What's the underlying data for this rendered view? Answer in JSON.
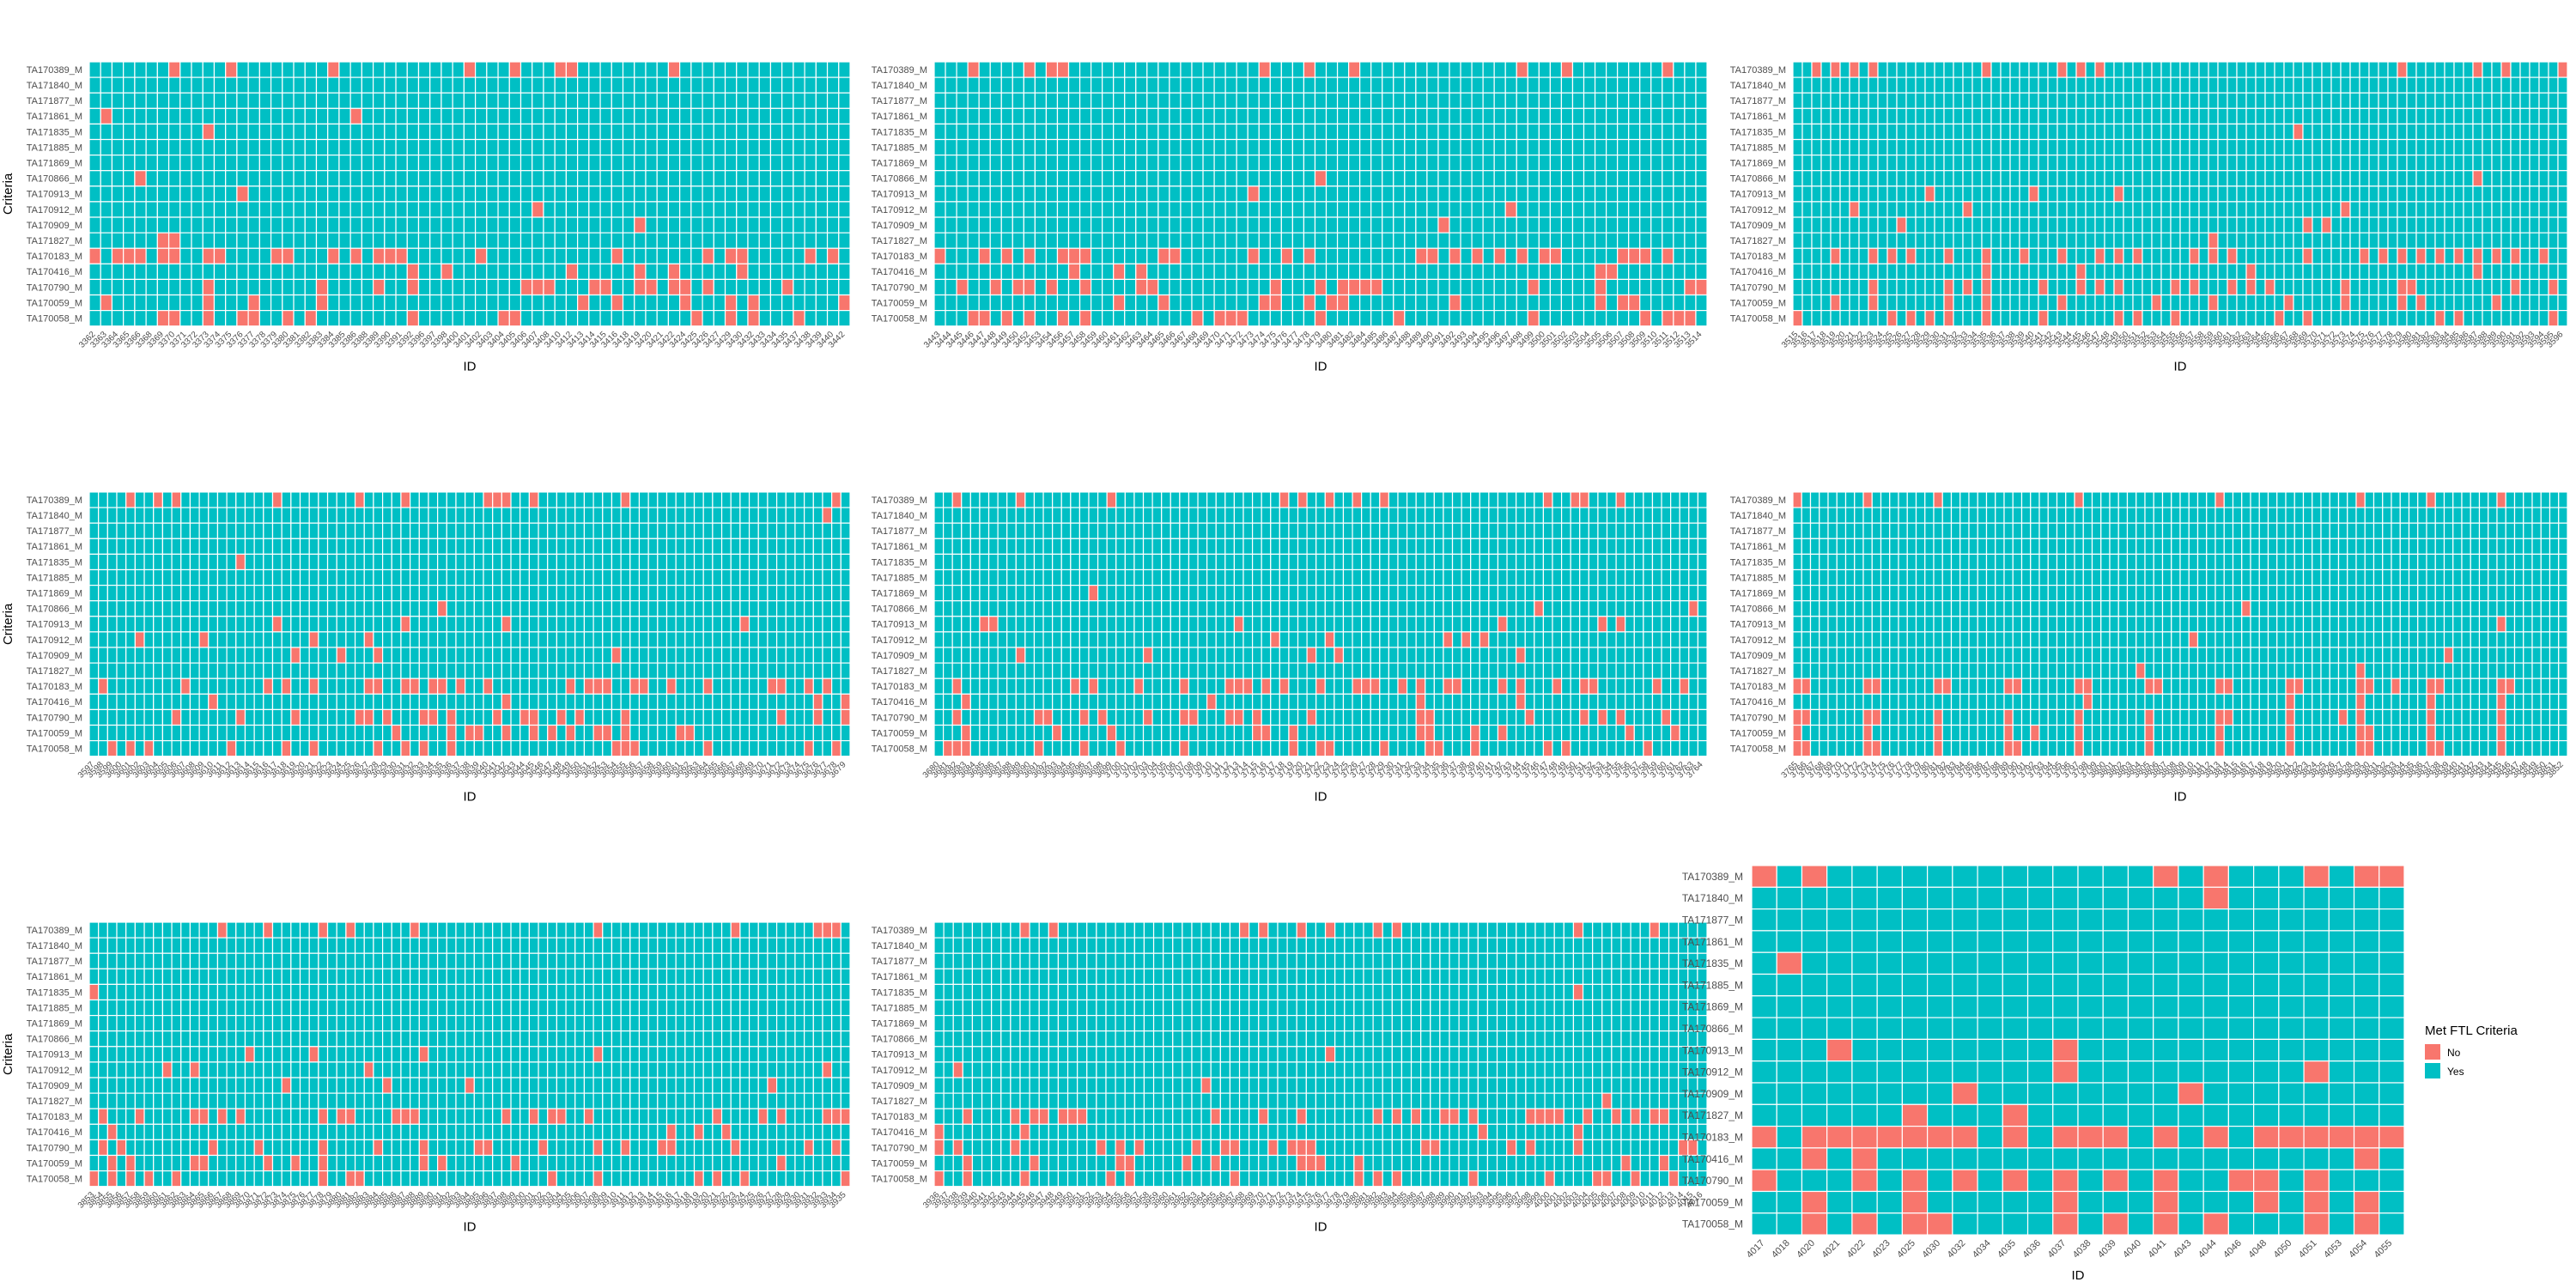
{
  "chart_data": [
    {
      "type": "heatmap",
      "xlabel": "ID",
      "ylabel": "Criteria",
      "categories": [
        "3362",
        "3363",
        "3364",
        "3365",
        "3366",
        "3368",
        "3369",
        "3370",
        "3371",
        "3372",
        "3373",
        "3374",
        "3375",
        "3376",
        "3377",
        "3378",
        "3379",
        "3380",
        "3381",
        "3382",
        "3383",
        "3384",
        "3385",
        "3386",
        "3388",
        "3389",
        "3390",
        "3391",
        "3392",
        "3396",
        "3397",
        "3398",
        "3400",
        "3401",
        "3402",
        "3403",
        "3404",
        "3405",
        "3406",
        "3407",
        "3408",
        "3410",
        "3412",
        "3413",
        "3414",
        "3415",
        "3416",
        "3418",
        "3419",
        "3420",
        "3421",
        "3422",
        "3424",
        "3425",
        "3426",
        "3427",
        "3429",
        "3430",
        "3432",
        "3433",
        "3434",
        "3435",
        "3437",
        "3438",
        "3439",
        "3440",
        "3442"
      ],
      "value_names": [
        "No",
        "Yes"
      ],
      "matrix": [
        "NNNNNNNN",
        "",
        "",
        "NN",
        "N",
        "",
        "",
        "N",
        "N",
        "N",
        "N",
        "NN",
        "NNNNNNNNNNNNNNNNNNNNNN",
        "NNNNNN",
        "NNNNNNNNNNNNNNN",
        "NNNNNNNNNN",
        "NNNNNNNNNNNNNN"
      ]
    },
    {
      "type": "heatmap",
      "xlabel": "ID",
      "ylabel": "",
      "categories": [
        "3443",
        "3444",
        "3445",
        "3446",
        "3447",
        "3448",
        "3449",
        "3450",
        "3452",
        "3453",
        "3454",
        "3456",
        "3457",
        "3458",
        "3459",
        "3460",
        "3461",
        "3462",
        "3463",
        "3464",
        "3465",
        "3466",
        "3467",
        "3468",
        "3469",
        "3470",
        "3471",
        "3472",
        "3473",
        "3474",
        "3475",
        "3476",
        "3477",
        "3478",
        "3479",
        "3480",
        "3481",
        "3482",
        "3484",
        "3485",
        "3486",
        "3487",
        "3488",
        "3489",
        "3490",
        "3491",
        "3492",
        "3493",
        "3494",
        "3495",
        "3496",
        "3497",
        "3498",
        "3499",
        "3500",
        "3501",
        "3502",
        "3503",
        "3504",
        "3505",
        "3506",
        "3507",
        "3508",
        "3509",
        "3510",
        "3511",
        "3512",
        "3513",
        "3514"
      ],
      "value_names": [
        "No",
        "Yes"
      ],
      "matrix": [
        "NNNNNNNNNN",
        "",
        "",
        "",
        "",
        "",
        "",
        "N",
        "N",
        "N",
        "N",
        "",
        "NNNNNNNNNNNNNNNNNNNNNNNN",
        "NNNNN",
        "NNNNNNNNNNNNNNNNNN",
        "NNNNNNNNNNN",
        "NNNNNNNNNNNNNNNNN"
      ]
    },
    {
      "type": "heatmap",
      "xlabel": "ID",
      "ylabel": "",
      "categories": [
        "3515",
        "3516",
        "3517",
        "3518",
        "3519",
        "3520",
        "3521",
        "3522",
        "3523",
        "3524",
        "3525",
        "3526",
        "3527",
        "3528",
        "3529",
        "3530",
        "3531",
        "3532",
        "3533",
        "3534",
        "3535",
        "3536",
        "3537",
        "3538",
        "3539",
        "3540",
        "3541",
        "3542",
        "3543",
        "3544",
        "3545",
        "3546",
        "3547",
        "3548",
        "3549",
        "3550",
        "3551",
        "3552",
        "3553",
        "3554",
        "3555",
        "3556",
        "3557",
        "3558",
        "3559",
        "3560",
        "3561",
        "3562",
        "3563",
        "3564",
        "3565",
        "3566",
        "3567",
        "3568",
        "3569",
        "3570",
        "3571",
        "3572",
        "3573",
        "3574",
        "3575",
        "3576",
        "3577",
        "3578",
        "3579",
        "3580",
        "3581",
        "3582",
        "3583",
        "3584",
        "3585",
        "3586",
        "3587",
        "3588",
        "3589",
        "3590",
        "3591",
        "3592",
        "3593",
        "3594",
        "3595",
        "3596"
      ],
      "value_names": [
        "No",
        "Yes"
      ],
      "matrix": [
        "NNNNNNNNNNNN",
        "",
        "",
        "",
        "N",
        "",
        "",
        "N",
        "NNN",
        "NNN",
        "NNN",
        "N",
        "NNNNNNNNNNNNNNNNNNNNNNNNN",
        "NNNN",
        "NNNNNNNNNNNNNNNNNN",
        "NNNNNNNNNNNN",
        "NNNNNNNNNNNNNNN"
      ]
    },
    {
      "type": "heatmap",
      "xlabel": "ID",
      "ylabel": "Criteria",
      "categories": [
        "3597",
        "3598",
        "3599",
        "3600",
        "3601",
        "3602",
        "3603",
        "3604",
        "3605",
        "3606",
        "3607",
        "3608",
        "3609",
        "3610",
        "3611",
        "3612",
        "3613",
        "3614",
        "3615",
        "3616",
        "3617",
        "3618",
        "3619",
        "3620",
        "3621",
        "3622",
        "3623",
        "3624",
        "3625",
        "3626",
        "3627",
        "3628",
        "3629",
        "3630",
        "3631",
        "3632",
        "3633",
        "3634",
        "3635",
        "3636",
        "3637",
        "3638",
        "3639",
        "3640",
        "3641",
        "3642",
        "3643",
        "3644",
        "3645",
        "3646",
        "3647",
        "3648",
        "3649",
        "3650",
        "3651",
        "3652",
        "3653",
        "3654",
        "3655",
        "3656",
        "3657",
        "3658",
        "3659",
        "3660",
        "3661",
        "3662",
        "3663",
        "3664",
        "3665",
        "3666",
        "3667",
        "3668",
        "3669",
        "3670",
        "3671",
        "3672",
        "3673",
        "3674",
        "3675",
        "3676",
        "3677",
        "3678",
        "3679"
      ],
      "value_names": [
        "No",
        "Yes"
      ],
      "matrix": [
        "NNNNNNNNNNNN",
        "N",
        "",
        "",
        "N",
        "",
        "",
        "N",
        "NNNN",
        "NNNN",
        "NNNN",
        "",
        "NNNNNNNNNNNNNNNNNNNNNNNNN",
        "NNNN",
        "NNNNNNNNNNNNNNNNNN",
        "NNNNNNNNNNNNN",
        "NNNNNNNNNNNNNNNN"
      ]
    },
    {
      "type": "heatmap",
      "xlabel": "ID",
      "ylabel": "",
      "categories": [
        "3680",
        "3681",
        "3682",
        "3683",
        "3684",
        "3685",
        "3686",
        "3687",
        "3688",
        "3689",
        "3690",
        "3691",
        "3692",
        "3693",
        "3694",
        "3695",
        "3696",
        "3697",
        "3698",
        "3699",
        "3700",
        "3701",
        "3702",
        "3703",
        "3704",
        "3705",
        "3706",
        "3707",
        "3708",
        "3709",
        "3710",
        "3711",
        "3712",
        "3713",
        "3714",
        "3715",
        "3716",
        "3717",
        "3718",
        "3719",
        "3720",
        "3721",
        "3722",
        "3723",
        "3724",
        "3725",
        "3726",
        "3727",
        "3728",
        "3729",
        "3730",
        "3731",
        "3732",
        "3733",
        "3734",
        "3735",
        "3736",
        "3737",
        "3738",
        "3739",
        "3740",
        "3741",
        "3742",
        "3743",
        "3744",
        "3745",
        "3746",
        "3747",
        "3748",
        "3749",
        "3750",
        "3751",
        "3752",
        "3753",
        "3754",
        "3755",
        "3756",
        "3757",
        "3758",
        "3759",
        "3760",
        "3761",
        "3762",
        "3763",
        "3764"
      ],
      "value_names": [
        "No",
        "Yes"
      ],
      "matrix": [
        "NNNNNNNNNNNN",
        "",
        "",
        "",
        "",
        "",
        "N",
        "NN",
        "NNNNNN",
        "NNNNN",
        "NNNNN",
        "",
        "NNNNNNNNNNNNNNNNNNNNNNNNN",
        "NNNN",
        "NNNNNNNNNNNNNNNNNNN",
        "NNNNNNNNNNNN",
        "NNNNNNNNNNNNNNNNN"
      ]
    },
    {
      "type": "heatmap",
      "xlabel": "ID",
      "ylabel": "",
      "categories": [
        "3765",
        "3766",
        "3767",
        "3768",
        "3769",
        "3770",
        "3771",
        "3772",
        "3773",
        "3774",
        "3775",
        "3776",
        "3777",
        "3778",
        "3779",
        "3780",
        "3781",
        "3782",
        "3783",
        "3784",
        "3785",
        "3786",
        "3787",
        "3788",
        "3789",
        "3790",
        "3791",
        "3792",
        "3793",
        "3794",
        "3795",
        "3796",
        "3797",
        "3798",
        "3799",
        "3800",
        "3801",
        "3802",
        "3803",
        "3804",
        "3805",
        "3806",
        "3807",
        "3808",
        "3809",
        "3810",
        "3811",
        "3812",
        "3813",
        "3814",
        "3815",
        "3816",
        "3817",
        "3818",
        "3819",
        "3820",
        "3821",
        "3822",
        "3823",
        "3824",
        "3825",
        "3826",
        "3827",
        "3828",
        "3829",
        "3830",
        "3831",
        "3832",
        "3833",
        "3834",
        "3835",
        "3836",
        "3837",
        "3838",
        "3839",
        "3840",
        "3841",
        "3842",
        "3843",
        "3844",
        "3845",
        "3846",
        "3847",
        "3848",
        "3849",
        "3850",
        "3851",
        "3852"
      ],
      "value_names": [
        "No",
        "Yes"
      ],
      "matrix": [
        "NNNNNNNN",
        "",
        "",
        "",
        "",
        "",
        "",
        "N",
        "N",
        "N",
        "N",
        "NN",
        "NNNNNNNNNNNNNNNNNNNNNNNNN",
        "NNNNN",
        "NNNNNNNNNNNNNNN",
        "NNNNNNNNNNNNN",
        "NNNNNNNNNNNNNNNN"
      ]
    },
    {
      "type": "heatmap",
      "xlabel": "ID",
      "ylabel": "Criteria",
      "categories": [
        "3853",
        "3854",
        "3855",
        "3856",
        "3857",
        "3858",
        "3859",
        "3860",
        "3861",
        "3862",
        "3863",
        "3864",
        "3865",
        "3866",
        "3867",
        "3868",
        "3869",
        "3870",
        "3871",
        "3872",
        "3873",
        "3874",
        "3875",
        "3876",
        "3877",
        "3878",
        "3879",
        "3880",
        "3881",
        "3882",
        "3883",
        "3884",
        "3885",
        "3886",
        "3887",
        "3888",
        "3889",
        "3890",
        "3891",
        "3892",
        "3893",
        "3894",
        "3895",
        "3896",
        "3897",
        "3898",
        "3899",
        "3900",
        "3901",
        "3902",
        "3903",
        "3904",
        "3905",
        "3906",
        "3907",
        "3908",
        "3909",
        "3910",
        "3911",
        "3912",
        "3913",
        "3914",
        "3915",
        "3916",
        "3917",
        "3918",
        "3919",
        "3920",
        "3921",
        "3922",
        "3923",
        "3924",
        "3925",
        "3926",
        "3927",
        "3928",
        "3929",
        "3930",
        "3931",
        "3932",
        "3933",
        "3934",
        "3935"
      ],
      "value_names": [
        "No",
        "Yes"
      ],
      "matrix": [
        "NNNNNNNNNN",
        "",
        "",
        "",
        "N",
        "",
        "",
        "",
        "NNNN",
        "NNNN",
        "NNNN",
        "",
        "NNNNNNNNNNNNNNNNNNNNNNN",
        "NNNN",
        "NNNNNNNNNNNNNNNNN",
        "NNNNNNNNNNN",
        "NNNNNNNNNNNNNN"
      ]
    },
    {
      "type": "heatmap",
      "xlabel": "ID",
      "ylabel": "",
      "categories": [
        "3936",
        "3937",
        "3938",
        "3939",
        "3940",
        "3941",
        "3942",
        "3943",
        "3944",
        "3945",
        "3946",
        "3947",
        "3948",
        "3949",
        "3950",
        "3951",
        "3952",
        "3953",
        "3954",
        "3955",
        "3956",
        "3957",
        "3958",
        "3959",
        "3960",
        "3961",
        "3962",
        "3963",
        "3964",
        "3965",
        "3966",
        "3967",
        "3968",
        "3969",
        "3970",
        "3971",
        "3972",
        "3973",
        "3974",
        "3975",
        "3976",
        "3977",
        "3978",
        "3979",
        "3980",
        "3981",
        "3982",
        "3983",
        "3984",
        "3985",
        "3986",
        "3987",
        "3988",
        "3989",
        "3990",
        "3991",
        "3992",
        "3993",
        "3994",
        "3995",
        "3996",
        "3997",
        "3998",
        "3999",
        "4000",
        "4001",
        "4002",
        "4003",
        "4004",
        "4005",
        "4006",
        "4007",
        "4008",
        "4009",
        "4010",
        "4011",
        "4012",
        "4013",
        "4014",
        "4015",
        "4016"
      ],
      "value_names": [
        "No",
        "Yes"
      ],
      "matrix": [
        "NNNNNNNNNN",
        "",
        "",
        "",
        "N",
        "",
        "",
        "",
        "N",
        "N",
        "N",
        "N",
        "NNNNNNNNNNNNNNNNNNNNNNNNN",
        "NNNN",
        "NNNNNNNNNNNNNNNNNNNN",
        "NNNNNNNNNNNN",
        "NNNNNNNNNNNNNNN"
      ]
    },
    {
      "type": "heatmap",
      "xlabel": "ID",
      "ylabel": "",
      "categories": [
        "4017",
        "4018",
        "4020",
        "4021",
        "4022",
        "4023",
        "4025",
        "4030",
        "4032",
        "4034",
        "4035",
        "4036",
        "4037",
        "4038",
        "4039",
        "4040",
        "4041",
        "4043",
        "4044",
        "4046",
        "4048",
        "4050",
        "4051",
        "4053",
        "4054",
        "4055"
      ],
      "value_names": [
        "No",
        "Yes"
      ],
      "matrix": [
        "NNNNNNN",
        "N",
        "",
        "",
        "N",
        "",
        "",
        "",
        "NN",
        "NN",
        "NN",
        "NN",
        "NNNNNNNNNNNNNNNNNNNN",
        "NNN",
        "NNNNNNNNNNN",
        "NNNNNNN",
        "NNNNNNNNNN"
      ]
    }
  ],
  "rows": [
    "TA170389_M",
    "TA171840_M",
    "TA171877_M",
    "TA171861_M",
    "TA171835_M",
    "TA171885_M",
    "TA171869_M",
    "TA170866_M",
    "TA170913_M",
    "TA170912_M",
    "TA170909_M",
    "TA171827_M",
    "TA170183_M",
    "TA170416_M",
    "TA170790_M",
    "TA170059_M",
    "TA170058_M"
  ],
  "colors": {
    "No": "#F8766D",
    "Yes": "#00BFC4"
  },
  "legend": {
    "title": "Met FTL Criteria",
    "items": [
      {
        "label": "No",
        "color": "#F8766D"
      },
      {
        "label": "Yes",
        "color": "#00BFC4"
      }
    ]
  }
}
